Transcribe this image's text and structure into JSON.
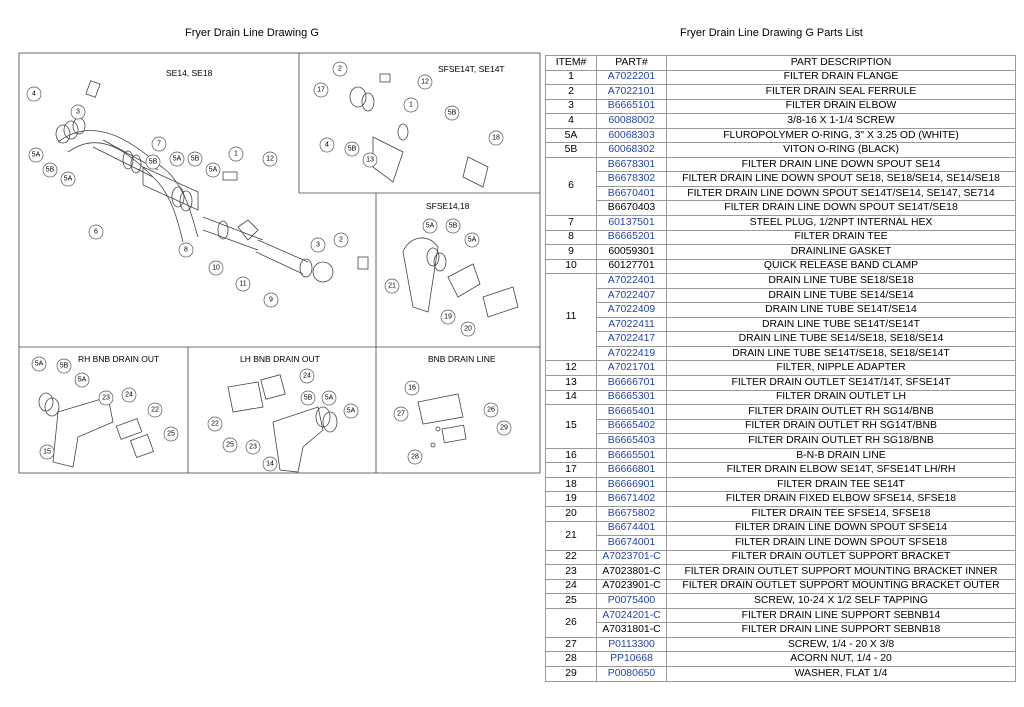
{
  "left_title": "Fryer Drain Line Drawing G",
  "right_title": "Fryer Drain Line Drawing G Parts List",
  "panels": {
    "se14": "SE14, SE18",
    "sfse14t": "SFSE14T, SE14T",
    "sfse1418": "SFSE14,18",
    "rh": "RH BNB DRAIN OUT",
    "lh": "LH BNB DRAIN OUT",
    "bnb": "BNB DRAIN LINE"
  },
  "callouts": {
    "se14": [
      "4",
      "5A",
      "5B",
      "5A",
      "3",
      "6",
      "5B",
      "7",
      "5A",
      "5B",
      "5A",
      "1",
      "12",
      "8",
      "10",
      "11",
      "9",
      "3",
      "2"
    ],
    "sfse14t": [
      "2",
      "17",
      "12",
      "1",
      "5B",
      "4",
      "5B",
      "13",
      "18"
    ],
    "sfse1418": [
      "5A",
      "5B",
      "5A",
      "21",
      "19",
      "20"
    ],
    "rh": [
      "5A",
      "5B",
      "5A",
      "23",
      "24",
      "22",
      "25",
      "15"
    ],
    "lh": [
      "24",
      "5B",
      "5A",
      "5A",
      "22",
      "25",
      "23",
      "14"
    ],
    "bnb": [
      "16",
      "27",
      "26",
      "29",
      "28"
    ]
  },
  "table": {
    "headers": [
      "ITEM#",
      "PART#",
      "PART DESCRIPTION"
    ],
    "rows": [
      {
        "item": "1",
        "parts": [
          {
            "no": "A7022201",
            "desc": "FILTER DRAIN  FLANGE",
            "blue": true
          }
        ]
      },
      {
        "item": "2",
        "parts": [
          {
            "no": "A7022101",
            "desc": "FILTER DRAIN SEAL FERRULE",
            "blue": true
          }
        ]
      },
      {
        "item": "3",
        "parts": [
          {
            "no": "B6665101",
            "desc": "FILTER DRAIN ELBOW",
            "blue": true
          }
        ]
      },
      {
        "item": "4",
        "parts": [
          {
            "no": "60088002",
            "desc": "3/8-16 X 1-1/4 SCREW",
            "blue": true
          }
        ]
      },
      {
        "item": "5A",
        "parts": [
          {
            "no": "60068303",
            "desc": "FLUROPOLYMER O-RING, 3\" X 3.25 OD (WHITE)",
            "blue": true
          }
        ]
      },
      {
        "item": "5B",
        "parts": [
          {
            "no": "60068302",
            "desc": "VITON O-RING (BLACK)",
            "blue": true
          }
        ]
      },
      {
        "item": "6",
        "parts": [
          {
            "no": "B6678301",
            "desc": "FILTER DRAIN LINE DOWN SPOUT SE14",
            "blue": true
          },
          {
            "no": "B6678302",
            "desc": "FILTER DRAIN LINE DOWN SPOUT SE18, SE18/SE14, SE14/SE18",
            "blue": true
          },
          {
            "no": "B6670401",
            "desc": "FILTER DRAIN LINE DOWN SPOUT SE14T/SE14, SE147, SE714",
            "blue": true
          },
          {
            "no": "B6670403",
            "desc": "FILTER DRAIN LINE DOWN SPOUT SE14T/SE18",
            "blue": false
          }
        ]
      },
      {
        "item": "7",
        "parts": [
          {
            "no": "60137501",
            "desc": "STEEL PLUG, 1/2NPT INTERNAL HEX",
            "blue": true
          }
        ]
      },
      {
        "item": "8",
        "parts": [
          {
            "no": "B6665201",
            "desc": "FILTER DRAIN TEE",
            "blue": true
          }
        ]
      },
      {
        "item": "9",
        "parts": [
          {
            "no": "60059301",
            "desc": "DRAINLINE GASKET",
            "blue": false
          }
        ]
      },
      {
        "item": "10",
        "parts": [
          {
            "no": "60127701",
            "desc": "QUICK RELEASE BAND CLAMP",
            "blue": false
          }
        ]
      },
      {
        "item": "11",
        "parts": [
          {
            "no": "A7022401",
            "desc": "DRAIN LINE TUBE SE18/SE18",
            "blue": true
          },
          {
            "no": "A7022407",
            "desc": "DRAIN LINE TUBE SE14/SE14",
            "blue": true
          },
          {
            "no": "A7022409",
            "desc": "DRAIN LINE TUBE SE14T/SE14",
            "blue": true
          },
          {
            "no": "A7022411",
            "desc": "DRAIN LINE TUBE SE14T/SE14T",
            "blue": true
          },
          {
            "no": "A7022417",
            "desc": "DRAIN LINE TUBE SE14/SE18, SE18/SE14",
            "blue": true
          },
          {
            "no": "A7022419",
            "desc": "DRAIN LINE TUBE SE14T/SE18, SE18/SE14T",
            "blue": true
          }
        ]
      },
      {
        "item": "12",
        "parts": [
          {
            "no": "A7021701",
            "desc": "FILTER, NIPPLE ADAPTER",
            "blue": true
          }
        ]
      },
      {
        "item": "13",
        "parts": [
          {
            "no": "B6666701",
            "desc": "FILTER DRAIN OUTLET SE14T/14T, SFSE14T",
            "blue": true
          }
        ]
      },
      {
        "item": "14",
        "parts": [
          {
            "no": "B6665301",
            "desc": "FILTER DRAIN OUTLET LH",
            "blue": true
          }
        ]
      },
      {
        "item": "15",
        "parts": [
          {
            "no": "B6665401",
            "desc": "FILTER DRAIN OUTLET RH SG14/BNB",
            "blue": true
          },
          {
            "no": "B6665402",
            "desc": "FILTER DRAIN OUTLET RH SG14T/BNB",
            "blue": true
          },
          {
            "no": "B6665403",
            "desc": "FILTER DRAIN OUTLET RH SG18/BNB",
            "blue": true
          }
        ]
      },
      {
        "item": "16",
        "parts": [
          {
            "no": "B6665501",
            "desc": "B-N-B DRAIN LINE",
            "blue": true
          }
        ]
      },
      {
        "item": "17",
        "parts": [
          {
            "no": "B6666801",
            "desc": "FILTER DRAIN ELBOW SE14T, SFSE14T LH/RH",
            "blue": true
          }
        ]
      },
      {
        "item": "18",
        "parts": [
          {
            "no": "B6666901",
            "desc": "FILTER DRAIN TEE SE14T",
            "blue": true
          }
        ]
      },
      {
        "item": "19",
        "parts": [
          {
            "no": "B6671402",
            "desc": "FILTER DRAIN FIXED ELBOW SFSE14, SFSE18",
            "blue": true
          }
        ]
      },
      {
        "item": "20",
        "parts": [
          {
            "no": "B6675802",
            "desc": "FILTER DRAIN TEE SFSE14, SFSE18",
            "blue": true
          }
        ]
      },
      {
        "item": "21",
        "parts": [
          {
            "no": "B6674401",
            "desc": "FILTER DRAIN LINE DOWN SPOUT SFSE14",
            "blue": true
          },
          {
            "no": "B6674001",
            "desc": "FILTER DRAIN LINE DOWN SPOUT SFSE18",
            "blue": true
          }
        ]
      },
      {
        "item": "22",
        "parts": [
          {
            "no": "A7023701-C",
            "desc": "FILTER DRAIN OUTLET SUPPORT BRACKET",
            "blue": true
          }
        ]
      },
      {
        "item": "23",
        "parts": [
          {
            "no": "A7023801-C",
            "desc": "FILTER DRAIN OUTLET SUPPORT MOUNTING BRACKET INNER",
            "blue": false
          }
        ]
      },
      {
        "item": "24",
        "parts": [
          {
            "no": "A7023901-C",
            "desc": "FILTER DRAIN OUTLET SUPPORT MOUNTING BRACKET OUTER",
            "blue": false
          }
        ]
      },
      {
        "item": "25",
        "parts": [
          {
            "no": "P0075400",
            "desc": "SCREW, 10-24 X 1/2 SELF TAPPING",
            "blue": true
          }
        ]
      },
      {
        "item": "26",
        "parts": [
          {
            "no": "A7024201-C",
            "desc": "FILTER DRAIN LINE SUPPORT SEBNB14",
            "blue": true
          },
          {
            "no": "A7031801-C",
            "desc": "FILTER DRAIN LINE SUPPORT SEBNB18",
            "blue": false
          }
        ]
      },
      {
        "item": "27",
        "parts": [
          {
            "no": "P0113300",
            "desc": "SCREW, 1/4 - 20 X 3/8",
            "blue": true
          }
        ]
      },
      {
        "item": "28",
        "parts": [
          {
            "no": "PP10668",
            "desc": "ACORN NUT, 1/4 - 20",
            "blue": true
          }
        ]
      },
      {
        "item": "29",
        "parts": [
          {
            "no": "P0080650",
            "desc": "WASHER, FLAT 1/4",
            "blue": true
          }
        ]
      }
    ]
  },
  "colors": {
    "part_link": "#2244aa",
    "border": "#9a9a9a"
  }
}
